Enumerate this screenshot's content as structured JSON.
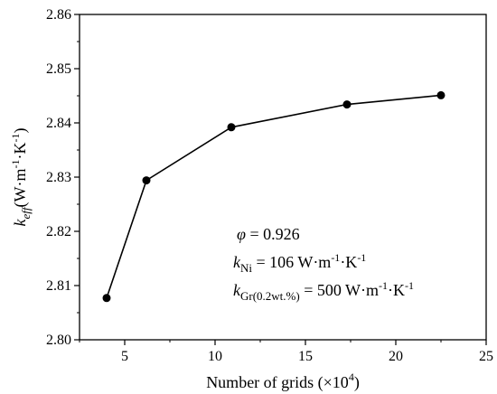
{
  "chart_data": {
    "type": "line",
    "xlabel": {
      "text": "Number of grids (×10",
      "sup": "4",
      "tail": ")"
    },
    "ylabel": {
      "main": "k",
      "sub": "eff",
      "unit": "(W·m",
      "unit_sup1": "-1",
      "unit_mid": "·K",
      "unit_sup2": "-1",
      "unit_tail": ")"
    },
    "xlim": [
      2.5,
      25
    ],
    "ylim": [
      2.8,
      2.86
    ],
    "x_ticks": [
      5,
      10,
      15,
      20,
      25
    ],
    "y_ticks": [
      2.8,
      2.81,
      2.82,
      2.83,
      2.84,
      2.85,
      2.86
    ],
    "y_tick_decimals": 2,
    "series": [
      {
        "x": [
          4.0,
          6.2,
          10.9,
          17.3,
          22.5
        ],
        "y": [
          2.8077,
          2.8294,
          2.8392,
          2.8434,
          2.8451
        ]
      }
    ],
    "annotations": {
      "phi": {
        "symbol": "φ",
        "text": " = 0.926"
      },
      "k_ni": {
        "symbol": "k",
        "sub": "Ni",
        "text": " = 106 W·m",
        "sup1": "-1",
        "mid": "·K",
        "sup2": "-1"
      },
      "k_gr": {
        "symbol": "k",
        "sub": "Gr(0.2wt.%)",
        "text": " = 500 W·m",
        "sup1": "-1",
        "mid": "·K",
        "sup2": "-1"
      }
    },
    "grid": false,
    "line_color": "#000000",
    "marker_color": "#000000"
  }
}
